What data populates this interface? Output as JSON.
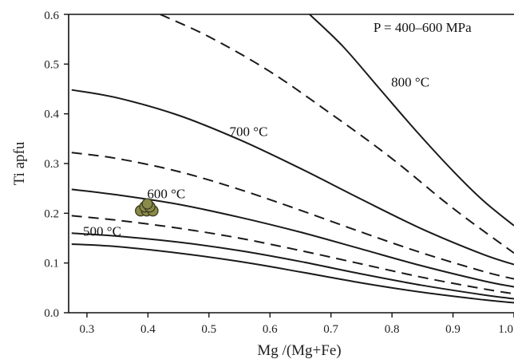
{
  "chart_data": {
    "type": "line",
    "xlabel": "Mg /(Mg+Fe)",
    "ylabel": "Ti apfu",
    "xlim": [
      0.27,
      1.0
    ],
    "ylim": [
      0,
      0.6
    ],
    "xticks": [
      0.3,
      0.4,
      0.5,
      0.6,
      0.7,
      0.8,
      0.9,
      1.0
    ],
    "xtick_labels": [
      "0.3",
      "0.4",
      "0.5",
      "0.6",
      "0.7",
      "0.8",
      "0.9",
      "1.0"
    ],
    "yticks": [
      0,
      0.1,
      0.2,
      0.3,
      0.4,
      0.5,
      0.6
    ],
    "ytick_labels": [
      "0.0",
      "0.1",
      "0.2",
      "0.3",
      "0.4",
      "0.5",
      "0.6"
    ],
    "grid": false,
    "annotations": [
      {
        "text": "P = 400–600 MPa",
        "x": 0.85,
        "y": 0.565
      },
      {
        "text": "800 °C",
        "x": 0.83,
        "y": 0.455
      },
      {
        "text": "700 °C",
        "x": 0.565,
        "y": 0.355
      },
      {
        "text": "600 °C",
        "x": 0.43,
        "y": 0.23
      },
      {
        "text": "500 °C",
        "x": 0.325,
        "y": 0.155
      }
    ],
    "series": [
      {
        "style": "solid",
        "x": [
          0.275,
          0.35,
          0.45,
          0.55,
          0.65,
          0.75,
          0.85,
          0.95,
          1.0
        ],
        "y": [
          0.138,
          0.133,
          0.12,
          0.103,
          0.082,
          0.06,
          0.041,
          0.026,
          0.02
        ]
      },
      {
        "style": "solid",
        "x": [
          0.275,
          0.35,
          0.45,
          0.55,
          0.65,
          0.75,
          0.85,
          0.95,
          1.0
        ],
        "y": [
          0.16,
          0.154,
          0.142,
          0.125,
          0.103,
          0.078,
          0.055,
          0.036,
          0.028
        ]
      },
      {
        "style": "dashed",
        "x": [
          0.275,
          0.35,
          0.45,
          0.55,
          0.65,
          0.75,
          0.85,
          0.95,
          1.0
        ],
        "y": [
          0.195,
          0.186,
          0.17,
          0.15,
          0.125,
          0.098,
          0.071,
          0.048,
          0.038
        ]
      },
      {
        "style": "solid",
        "x": [
          0.275,
          0.35,
          0.45,
          0.55,
          0.65,
          0.75,
          0.85,
          0.95,
          1.0
        ],
        "y": [
          0.248,
          0.237,
          0.218,
          0.192,
          0.162,
          0.128,
          0.094,
          0.064,
          0.052
        ]
      },
      {
        "style": "dashed",
        "x": [
          0.275,
          0.35,
          0.45,
          0.55,
          0.65,
          0.75,
          0.85,
          0.95,
          1.0
        ],
        "y": [
          0.322,
          0.31,
          0.284,
          0.248,
          0.206,
          0.162,
          0.12,
          0.083,
          0.068
        ]
      },
      {
        "style": "solid",
        "x": [
          0.275,
          0.35,
          0.45,
          0.55,
          0.65,
          0.75,
          0.85,
          0.95,
          1.0
        ],
        "y": [
          0.448,
          0.432,
          0.397,
          0.348,
          0.29,
          0.228,
          0.168,
          0.117,
          0.097
        ]
      },
      {
        "style": "dashed",
        "x": [
          0.42,
          0.5,
          0.6,
          0.7,
          0.8,
          0.9,
          1.0
        ],
        "y": [
          0.6,
          0.555,
          0.485,
          0.4,
          0.31,
          0.21,
          0.12
        ]
      },
      {
        "style": "solid",
        "x": [
          0.665,
          0.72,
          0.78,
          0.84,
          0.9,
          0.95,
          1.0
        ],
        "y": [
          0.6,
          0.535,
          0.45,
          0.365,
          0.285,
          0.225,
          0.175
        ]
      }
    ],
    "points": [
      {
        "x": 0.388,
        "y": 0.205
      },
      {
        "x": 0.398,
        "y": 0.205
      },
      {
        "x": 0.408,
        "y": 0.205
      },
      {
        "x": 0.395,
        "y": 0.213
      },
      {
        "x": 0.403,
        "y": 0.213
      },
      {
        "x": 0.399,
        "y": 0.219
      }
    ],
    "point_color": "#8a8a4a"
  }
}
